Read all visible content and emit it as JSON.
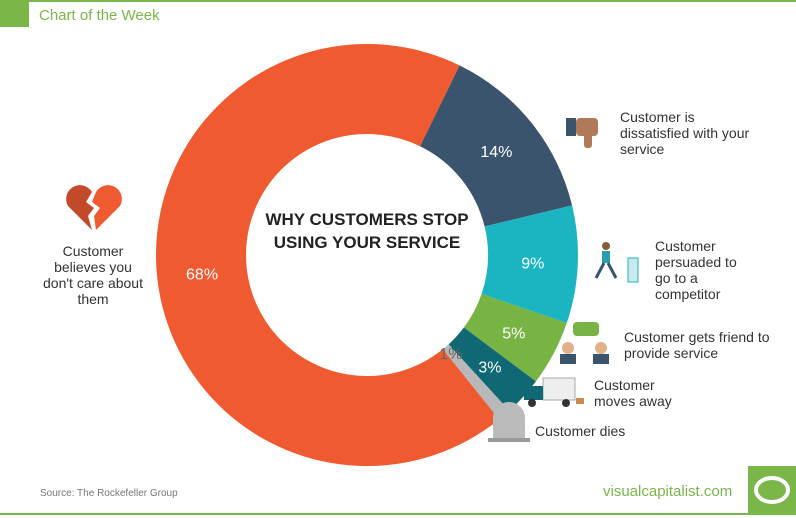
{
  "header": {
    "title": "Chart of the Week"
  },
  "footer": {
    "source": "Source: The Rockefeller Group",
    "brand": "visualcapitalist.com"
  },
  "chart_data": {
    "type": "pie",
    "donut": true,
    "title": "WHY CUSTOMERS STOP USING YOUR SERVICE",
    "categories": [
      "Customer is dissatisfied with your service",
      "Customer persuaded to go to a competitor",
      "Customer gets friend to provide service",
      "Customer moves away",
      "Customer dies",
      "Customer believes you don't care about them"
    ],
    "values": [
      14,
      9,
      5,
      3,
      1,
      68
    ],
    "value_labels": [
      "14%",
      "9%",
      "5%",
      "3%",
      "1%",
      "68%"
    ],
    "colors": [
      "#3b546d",
      "#1ab5c1",
      "#78b443",
      "#0f6873",
      "#b8b8b8",
      "#ef5a31"
    ],
    "icons": [
      "thumbs-down-icon",
      "runner-icon",
      "chat-people-icon",
      "truck-icon",
      "gravestone-icon",
      "broken-heart-icon"
    ]
  }
}
